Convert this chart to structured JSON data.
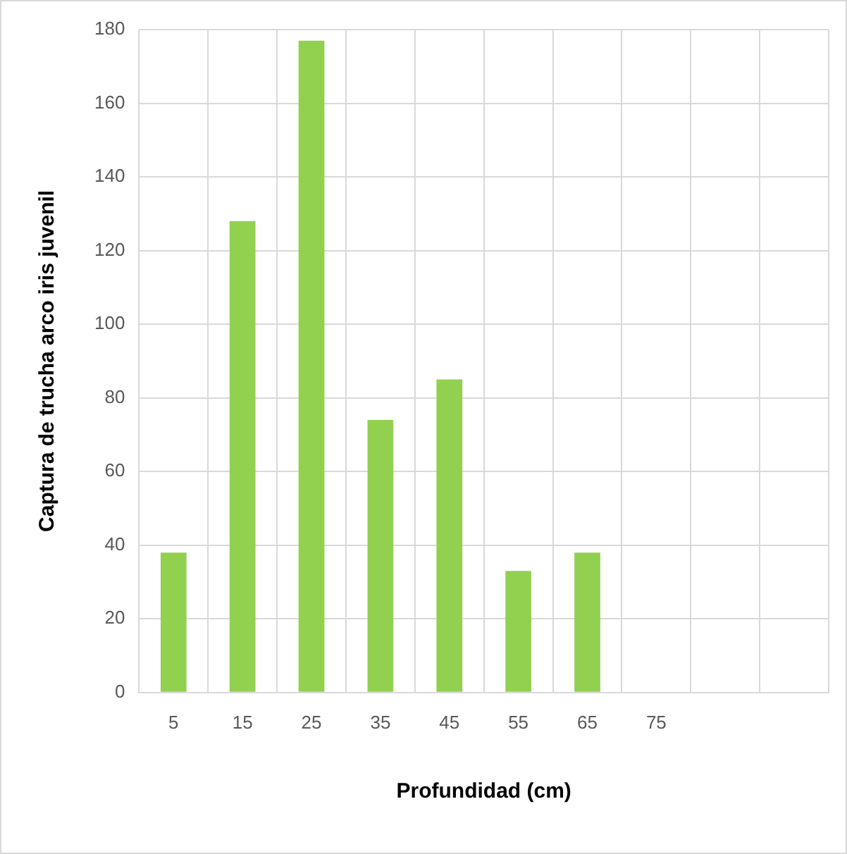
{
  "chart_data": {
    "type": "bar",
    "xlabel": "Profundidad (cm)",
    "ylabel": "Captura de trucha arco iris juvenil",
    "categories": [
      "5",
      "15",
      "25",
      "35",
      "45",
      "55",
      "65",
      "75",
      null,
      null
    ],
    "values": [
      38,
      128,
      177,
      74,
      85,
      33,
      38,
      0,
      null,
      null
    ],
    "color": "#92d050",
    "ylim": [
      0,
      180
    ],
    "yticks": [
      0,
      20,
      40,
      60,
      80,
      100,
      120,
      140,
      160,
      180
    ],
    "grid": true,
    "legend": false
  }
}
